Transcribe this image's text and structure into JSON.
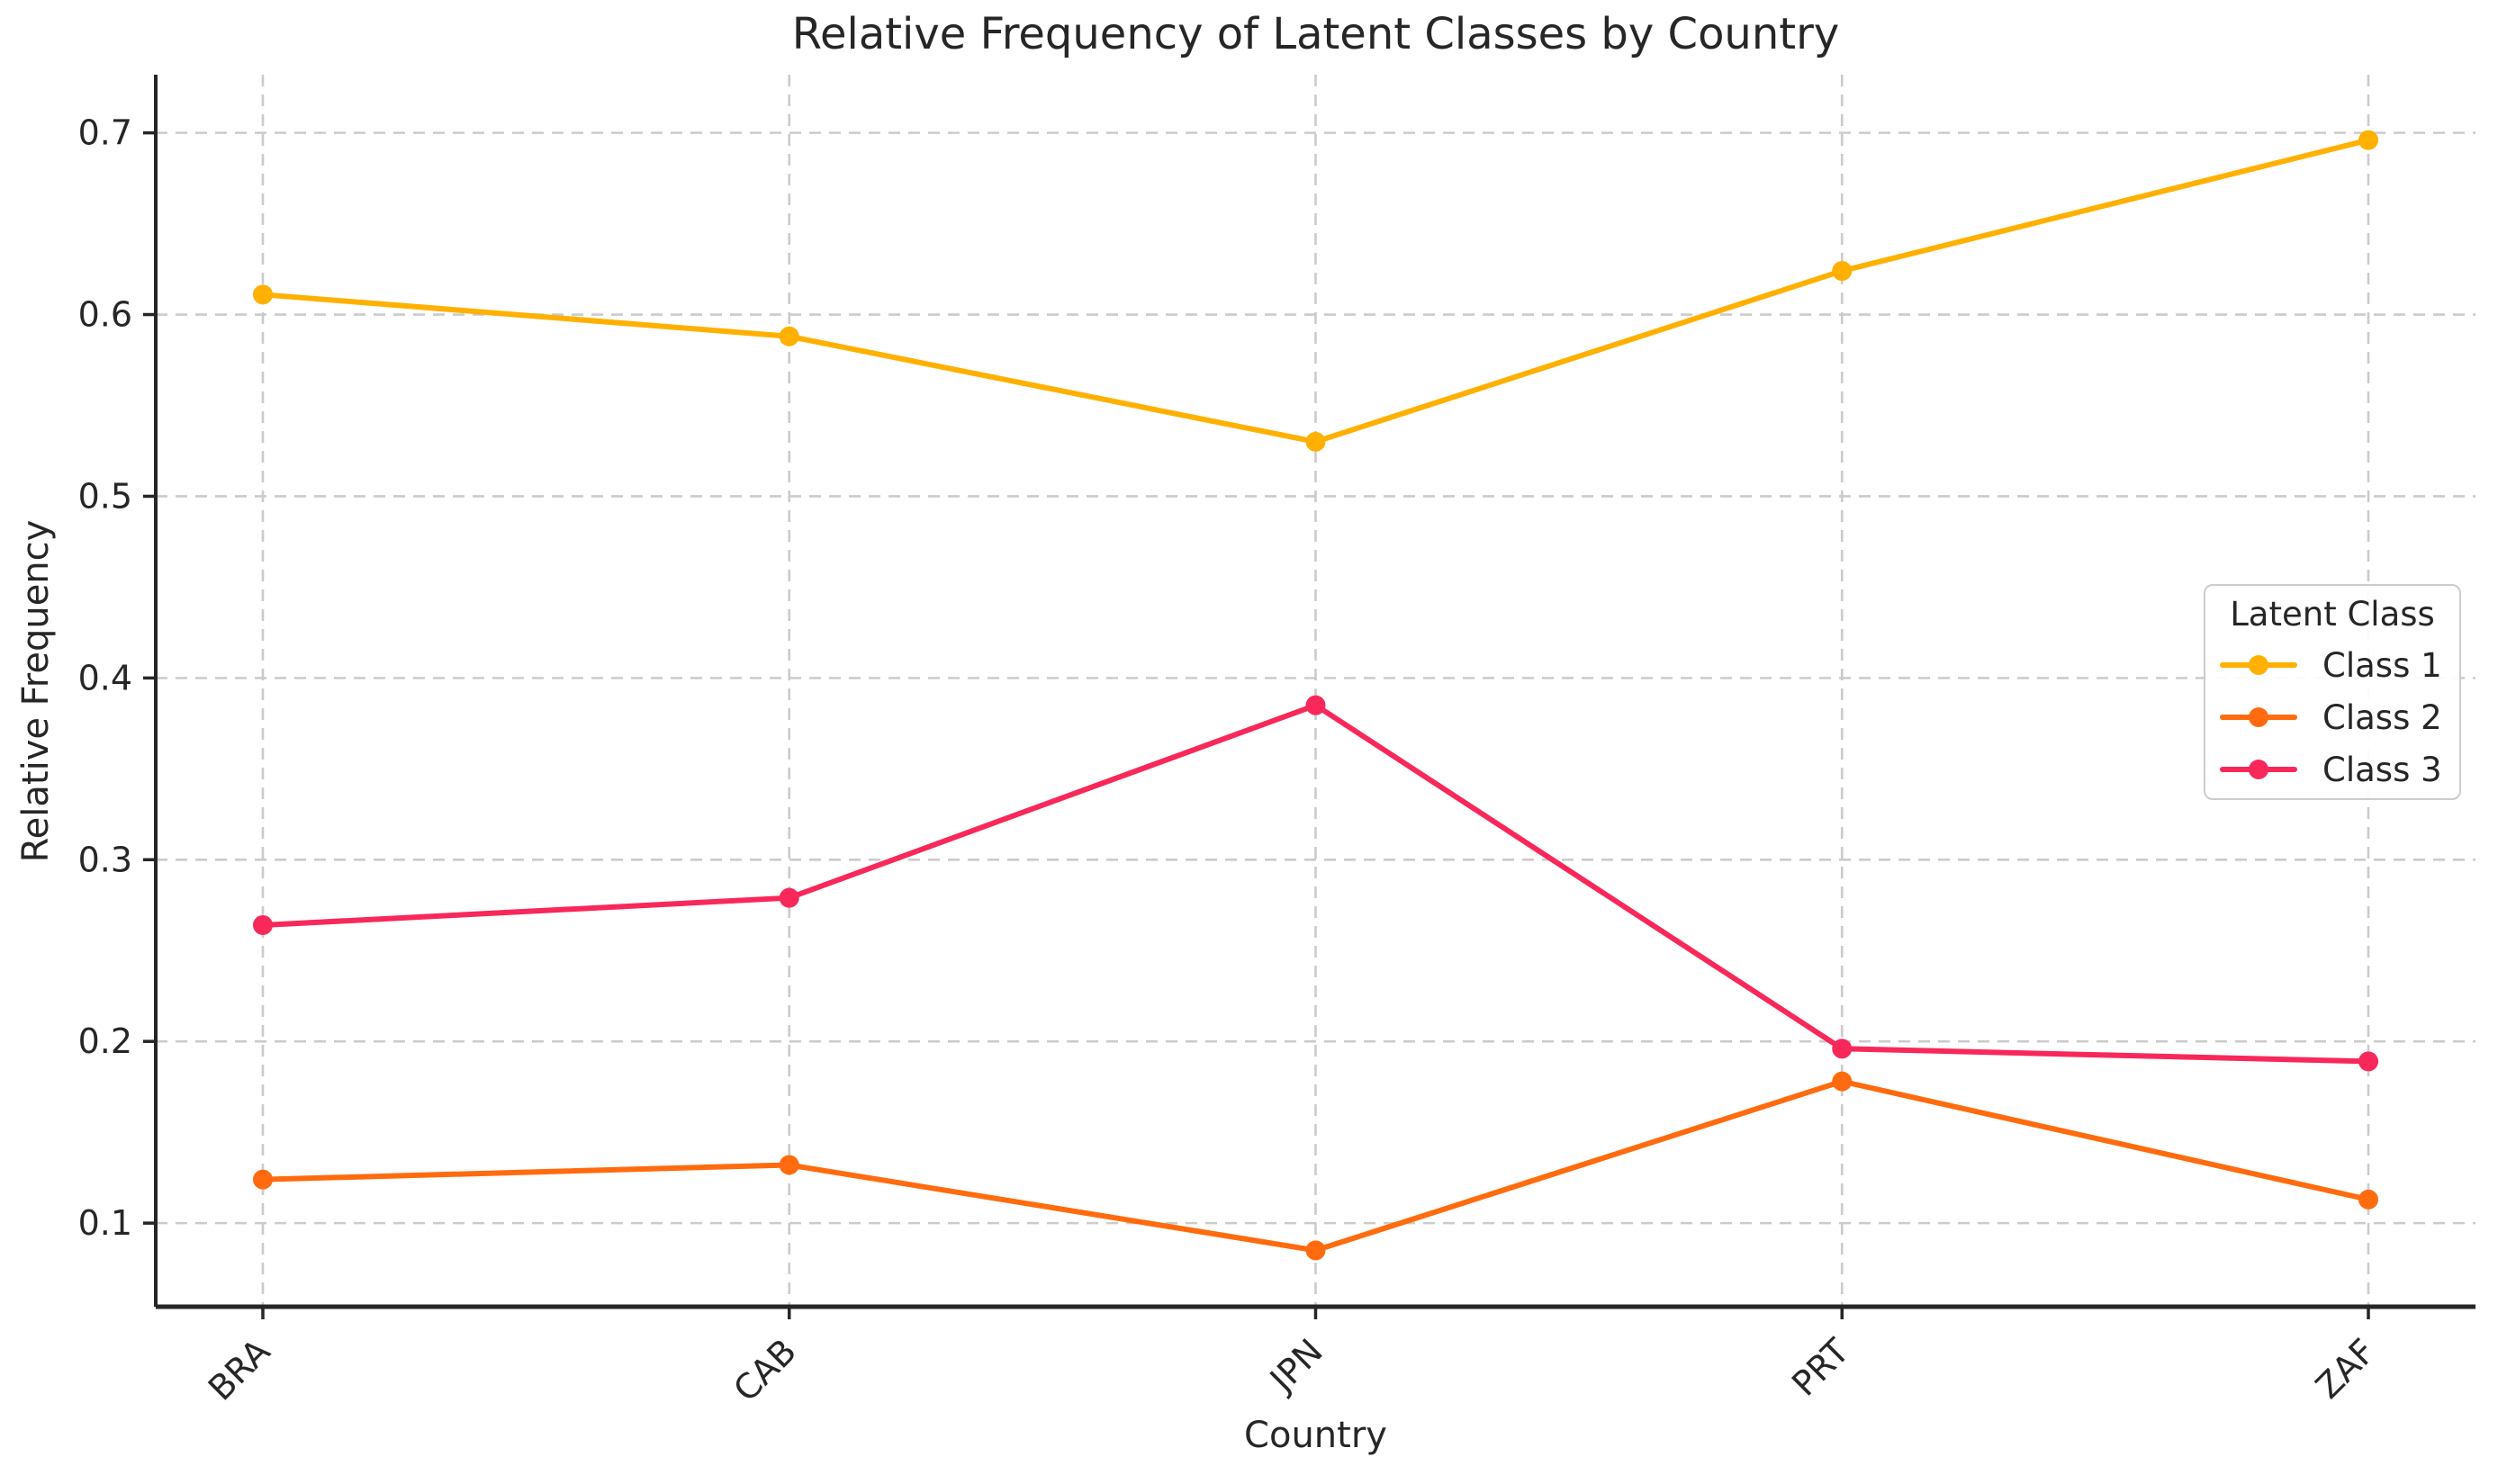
{
  "figure": {
    "background": "#ffffff",
    "text_color": "#262626",
    "grid_color": "#cbcbcb",
    "spine_color": "#262626"
  },
  "chart_data": {
    "type": "line",
    "title": "Relative Frequency of Latent Classes by Country",
    "xlabel": "Country",
    "ylabel": "Relative Frequency",
    "categories": [
      "BRA",
      "CAB",
      "JPN",
      "PRT",
      "ZAF"
    ],
    "series": [
      {
        "name": "Class 1",
        "color": "#FFB001",
        "values": [
          0.611,
          0.588,
          0.53,
          0.624,
          0.696
        ]
      },
      {
        "name": "Class 2",
        "color": "#FF6B0E",
        "values": [
          0.124,
          0.132,
          0.085,
          0.178,
          0.113
        ]
      },
      {
        "name": "Class 3",
        "color": "#F8285A",
        "values": [
          0.264,
          0.279,
          0.385,
          0.196,
          0.189
        ]
      }
    ],
    "yticks": [
      0.1,
      0.2,
      0.3,
      0.4,
      0.5,
      0.6,
      0.7
    ],
    "ylim": [
      0.054,
      0.732
    ],
    "grid": true,
    "grid_style": "dashed",
    "marker": "circle",
    "x_tick_rotation": 45,
    "legend": {
      "title": "Latent Class",
      "position": "center right",
      "entries": [
        "Class 1",
        "Class 2",
        "Class 3"
      ]
    }
  }
}
